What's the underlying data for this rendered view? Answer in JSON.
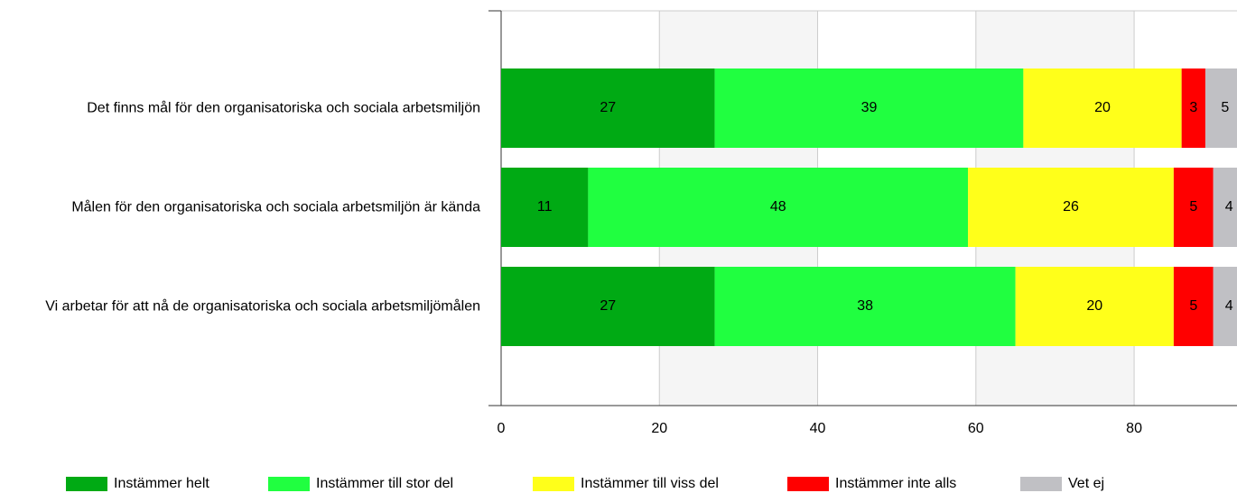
{
  "chart_data": {
    "type": "stacked-bar-horizontal",
    "categories": [
      "Det finns mål för den organisatoriska och sociala arbetsmiljön",
      "Målen för den organisatoriska och sociala arbetsmiljön är kända",
      "Vi arbetar för att nå de organisatoriska och sociala arbetsmiljömålen"
    ],
    "series": [
      {
        "name": "Instämmer helt",
        "color": "#00aa14",
        "values": [
          27,
          11,
          27
        ]
      },
      {
        "name": "Instämmer till stor del",
        "color": "#20ff40",
        "values": [
          39,
          48,
          38
        ]
      },
      {
        "name": "Instämmer till viss del",
        "color": "#ffff1a",
        "values": [
          20,
          26,
          20
        ]
      },
      {
        "name": "Instämmer inte alls",
        "color": "#ff0000",
        "values": [
          3,
          5,
          5
        ]
      },
      {
        "name": "Vet ej",
        "color": "#c0c0c4",
        "values": [
          5,
          4,
          4
        ]
      }
    ],
    "xlim": [
      0,
      93
    ],
    "xticks": [
      0,
      20,
      40,
      60,
      80
    ],
    "grid": true,
    "legend": "bottom"
  }
}
